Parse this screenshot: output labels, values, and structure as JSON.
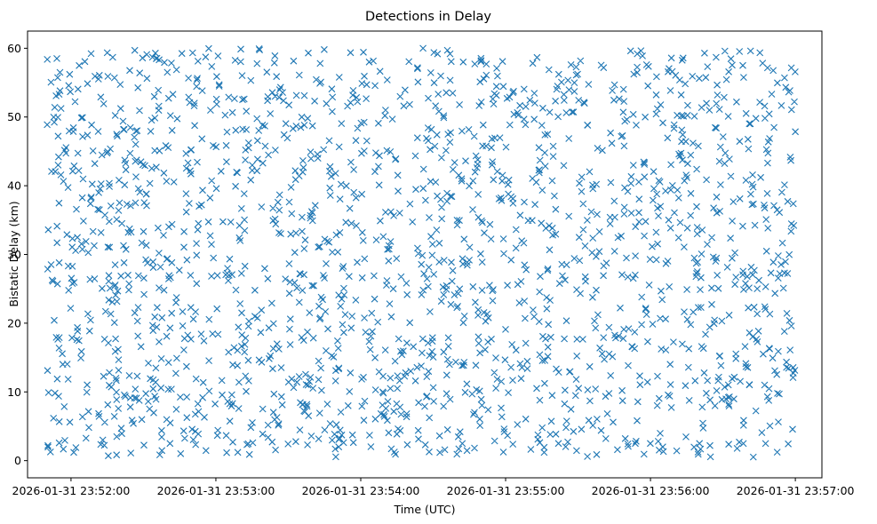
{
  "chart_data": {
    "type": "scatter",
    "title": "Detections in Delay",
    "xlabel": "Time (UTC)",
    "ylabel": "Bistatic Delay (km)",
    "marker": "x",
    "color": "#1f77b4",
    "xlim_seconds": [
      -18,
      311
    ],
    "ylim": [
      -2.5,
      62.5
    ],
    "data_range_seconds": [
      -10,
      300
    ],
    "data_range_delay_km": [
      0.5,
      60
    ],
    "point_count": 1900,
    "x_ticks": [
      {
        "value": 0,
        "label": "2026-01-31 23:52:00"
      },
      {
        "value": 60,
        "label": "2026-01-31 23:53:00"
      },
      {
        "value": 120,
        "label": "2026-01-31 23:54:00"
      },
      {
        "value": 180,
        "label": "2026-01-31 23:55:00"
      },
      {
        "value": 240,
        "label": "2026-01-31 23:56:00"
      },
      {
        "value": 300,
        "label": "2026-01-31 23:57:00"
      }
    ],
    "y_ticks": [
      {
        "value": 0,
        "label": "0"
      },
      {
        "value": 10,
        "label": "10"
      },
      {
        "value": 20,
        "label": "20"
      },
      {
        "value": 30,
        "label": "30"
      },
      {
        "value": 40,
        "label": "40"
      },
      {
        "value": 50,
        "label": "50"
      },
      {
        "value": 60,
        "label": "60"
      }
    ]
  }
}
